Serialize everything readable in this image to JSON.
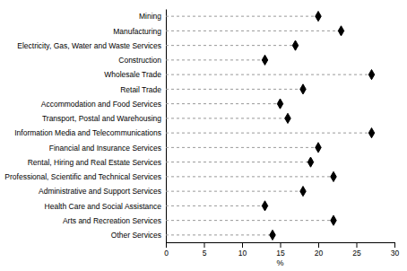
{
  "chart_data": {
    "type": "dot",
    "categories": [
      "Mining",
      "Manufacturing",
      "Electricity, Gas, Water and Waste Services",
      "Construction",
      "Wholesale Trade",
      "Retail Trade",
      "Accommodation and Food Services",
      "Transport, Postal and Warehousing",
      "Information Media and Telecommunications",
      "Financial and Insurance Services",
      "Rental, Hiring and Real Estate Services",
      "Professional, Scientific and Technical Services",
      "Administrative and Support Services",
      "Health Care and Social Assistance",
      "Arts and Recreation Services",
      "Other Services"
    ],
    "values": [
      20.0,
      23.0,
      17.0,
      13.0,
      27.0,
      18.0,
      15.0,
      16.0,
      27.0,
      20.0,
      19.0,
      22.0,
      18.0,
      13.0,
      22.0,
      14.0
    ],
    "color": "#000000",
    "marker": "diamond",
    "line_style": "dashed",
    "orientation": "horizontal",
    "xlabel": "%",
    "xlim": [
      0,
      30
    ],
    "xticks": [
      0,
      5,
      10,
      15,
      20,
      25,
      30
    ],
    "grid": false
  }
}
